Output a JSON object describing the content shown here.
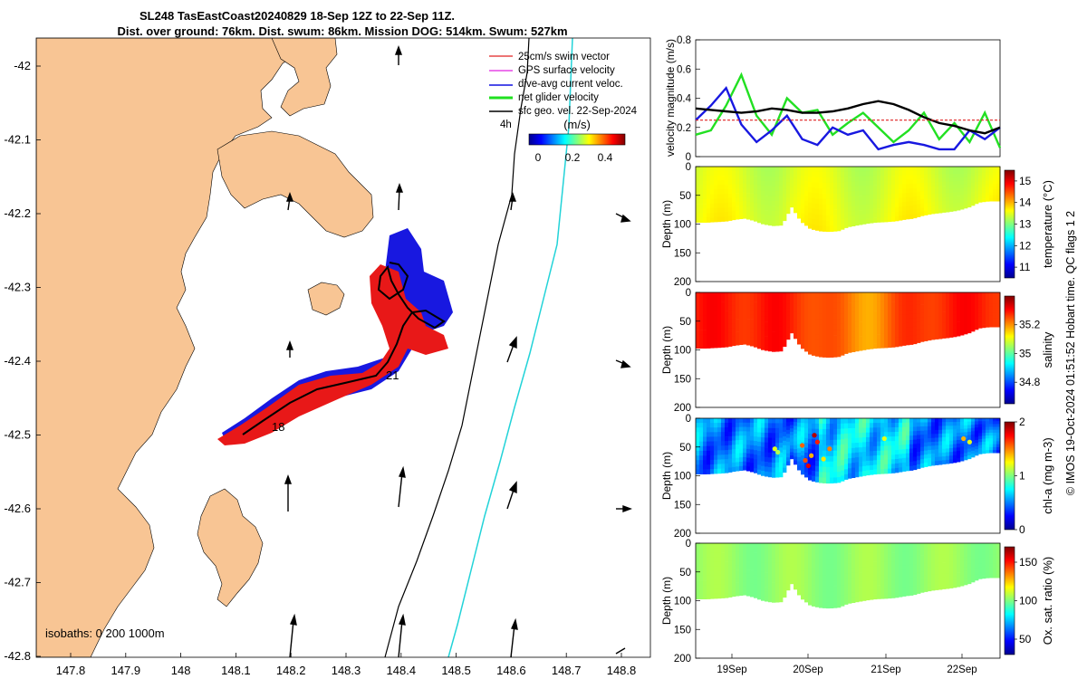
{
  "title": {
    "line1": "SL248 TasEastCoast20240829 18-Sep 12Z to 22-Sep 11Z.",
    "line2": "Dist. over ground: 76km. Dist. swum: 86km. Mission DOG: 514km. Swum: 527km"
  },
  "side_label": "© IMOS 19-Oct-2024 01:51:52 Hobart time. QC flags 1  2",
  "map": {
    "lon_ticks": [
      "147.8",
      "147.9",
      "148",
      "148.1",
      "148.2",
      "148.3",
      "148.4",
      "148.5",
      "148.6",
      "148.7",
      "148.8"
    ],
    "lat_ticks": [
      "-42",
      "-42.1",
      "-42.2",
      "-42.3",
      "-42.4",
      "-42.5",
      "-42.6",
      "-42.7",
      "-42.8"
    ],
    "isobaths_label": "isobaths: 0   200  1000m",
    "marker_labels": {
      "start": "18",
      "mid": "21"
    },
    "legend": [
      {
        "label": "25cm/s swim vector",
        "color": "#e02020"
      },
      {
        "label": "GPS surface velocity",
        "color": "#e020e0"
      },
      {
        "label": "dive-avg current veloc.",
        "color": "#1010e0"
      },
      {
        "label": "net glider velocity",
        "color": "#20e020"
      },
      {
        "label": "sfc geo. vel. 22-Sep-2024",
        "color": "#000000"
      }
    ],
    "legend_extra": "4h",
    "colorbar": {
      "title": "(m/s)",
      "ticks": [
        "0",
        "0.2",
        "0.4"
      ]
    },
    "colors": {
      "land": "#f8c594",
      "sea": "#ffffff",
      "isobath_200": "#000000",
      "isobath_1000": "#22d3d8"
    }
  },
  "chart_data": [
    {
      "type": "line",
      "title": "",
      "ylabel": "velocity magnitude (m/s)",
      "ylim": [
        0,
        0.8
      ],
      "yticks": [
        "0",
        "0.2",
        "0.4",
        "0.6",
        "0.8"
      ],
      "x": [
        0,
        0.05,
        0.1,
        0.15,
        0.2,
        0.25,
        0.3,
        0.35,
        0.4,
        0.45,
        0.5,
        0.55,
        0.6,
        0.65,
        0.7,
        0.75,
        0.8,
        0.85,
        0.9,
        0.95,
        1
      ],
      "series": [
        {
          "name": "net glider velocity",
          "color": "#22e022",
          "values": [
            0.15,
            0.18,
            0.35,
            0.56,
            0.28,
            0.15,
            0.4,
            0.3,
            0.32,
            0.15,
            0.23,
            0.3,
            0.2,
            0.1,
            0.18,
            0.3,
            0.12,
            0.23,
            0.1,
            0.3,
            0.06
          ]
        },
        {
          "name": "dive-avg current veloc.",
          "color": "#1818e0",
          "values": [
            0.25,
            0.35,
            0.47,
            0.22,
            0.1,
            0.18,
            0.28,
            0.12,
            0.08,
            0.2,
            0.15,
            0.18,
            0.05,
            0.08,
            0.1,
            0.08,
            0.05,
            0.05,
            0.18,
            0.12,
            0.2
          ]
        },
        {
          "name": "sfc geo. vel.",
          "color": "#000000",
          "values": [
            0.33,
            0.32,
            0.31,
            0.3,
            0.31,
            0.33,
            0.32,
            0.3,
            0.3,
            0.31,
            0.33,
            0.36,
            0.38,
            0.36,
            0.32,
            0.27,
            0.23,
            0.21,
            0.18,
            0.16,
            0.2
          ]
        },
        {
          "name": "swim speed",
          "color": "#e02020",
          "dashed": true,
          "values": [
            0.25,
            0.25,
            0.25,
            0.25,
            0.25,
            0.25,
            0.25,
            0.25,
            0.25,
            0.25,
            0.25,
            0.25,
            0.25,
            0.25,
            0.25,
            0.25,
            0.25,
            0.25,
            0.25,
            0.25,
            0.25
          ]
        }
      ]
    },
    {
      "type": "heatmap",
      "variable": "temperature (°C)",
      "ylabel": "Depth (m)",
      "ylim": [
        0,
        200
      ],
      "yticks": [
        "0",
        "50",
        "100",
        "150",
        "200"
      ],
      "clim": [
        10.5,
        15.5
      ],
      "cticks": [
        "11",
        "12",
        "13",
        "14",
        "15"
      ],
      "depth_profile_m": [
        97,
        97,
        96,
        95,
        92,
        90,
        94,
        100,
        103,
        102,
        70,
        95,
        108,
        112,
        113,
        112,
        105,
        102,
        99,
        97,
        96,
        95,
        92,
        90,
        85,
        82,
        80,
        78,
        75,
        70,
        62,
        60,
        60
      ]
    },
    {
      "type": "heatmap",
      "variable": "salinity",
      "ylabel": "Depth (m)",
      "ylim": [
        0,
        200
      ],
      "yticks": [
        "0",
        "50",
        "100",
        "150",
        "200"
      ],
      "clim": [
        34.65,
        35.4
      ],
      "cticks": [
        "34.8",
        "35",
        "35.2"
      ],
      "depth_profile_m": [
        97,
        97,
        96,
        95,
        92,
        90,
        94,
        100,
        103,
        102,
        70,
        95,
        108,
        112,
        113,
        112,
        105,
        102,
        99,
        97,
        96,
        95,
        92,
        90,
        85,
        82,
        80,
        78,
        75,
        70,
        62,
        60,
        60
      ]
    },
    {
      "type": "heatmap",
      "variable": "chl-a (mg m-3)",
      "ylabel": "Depth (m)",
      "ylim": [
        0,
        200
      ],
      "yticks": [
        "0",
        "50",
        "100",
        "150",
        "200"
      ],
      "clim": [
        0,
        2
      ],
      "cticks": [
        "0",
        "1",
        "2"
      ],
      "depth_profile_m": [
        97,
        97,
        96,
        95,
        92,
        90,
        94,
        100,
        103,
        102,
        70,
        95,
        108,
        112,
        113,
        112,
        105,
        102,
        99,
        97,
        96,
        95,
        92,
        90,
        85,
        82,
        80,
        78,
        75,
        70,
        62,
        60,
        60
      ]
    },
    {
      "type": "heatmap",
      "variable": "Ox. sat. ratio (%)",
      "ylabel": "Depth (m)",
      "ylim": [
        0,
        200
      ],
      "yticks": [
        "0",
        "50",
        "100",
        "150",
        "200"
      ],
      "clim": [
        30,
        170
      ],
      "cticks": [
        "50",
        "100",
        "150"
      ],
      "xticks": [
        "19Sep",
        "20Sep",
        "21Sep",
        "22Sep"
      ],
      "depth_profile_m": [
        97,
        97,
        96,
        95,
        92,
        90,
        94,
        100,
        103,
        102,
        70,
        95,
        108,
        112,
        113,
        112,
        105,
        102,
        99,
        97,
        96,
        95,
        92,
        90,
        85,
        82,
        80,
        78,
        75,
        70,
        62,
        60,
        60
      ]
    }
  ]
}
